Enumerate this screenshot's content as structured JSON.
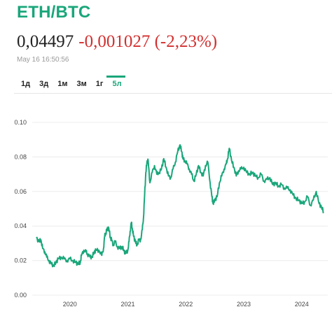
{
  "header": {
    "title": "ETH/BTC",
    "price": "0,04497",
    "change": "-0,001027 (-2,23%)",
    "timestamp": "May 16 16:50:56"
  },
  "tabs": [
    {
      "label": "1д",
      "active": false
    },
    {
      "label": "3д",
      "active": false
    },
    {
      "label": "1м",
      "active": false
    },
    {
      "label": "3м",
      "active": false
    },
    {
      "label": "1г",
      "active": false
    },
    {
      "label": "5л",
      "active": true
    }
  ],
  "colors": {
    "accent": "#1aa67a",
    "negative": "#d32f2f",
    "line": "#1aa67a"
  },
  "chart_data": {
    "type": "line",
    "title": "",
    "xlabel": "",
    "ylabel": "",
    "xlim": [
      2019.35,
      2024.45
    ],
    "ylim": [
      0,
      0.1
    ],
    "y_ticks": [
      "0.00",
      "0.02",
      "0.04",
      "0.06",
      "0.08",
      "0.10"
    ],
    "x_ticks": [
      "2020",
      "2021",
      "2022",
      "2023",
      "2024"
    ],
    "grid": true,
    "legend": "none",
    "series": [
      {
        "name": "",
        "x": [
          2019.42,
          2019.47,
          2019.5,
          2019.53,
          2019.57,
          2019.6,
          2019.64,
          2019.68,
          2019.72,
          2019.76,
          2019.8,
          2019.85,
          2019.9,
          2019.95,
          2020.0,
          2020.05,
          2020.1,
          2020.14,
          2020.18,
          2020.2,
          2020.24,
          2020.28,
          2020.3,
          2020.35,
          2020.38,
          2020.42,
          2020.45,
          2020.5,
          2020.55,
          2020.58,
          2020.6,
          2020.62,
          2020.64,
          2020.67,
          2020.7,
          2020.72,
          2020.75,
          2020.78,
          2020.82,
          2020.86,
          2020.9,
          2020.93,
          2020.96,
          2021.0,
          2021.02,
          2021.04,
          2021.06,
          2021.08,
          2021.1,
          2021.13,
          2021.16,
          2021.19,
          2021.22,
          2021.25,
          2021.27,
          2021.29,
          2021.31,
          2021.33,
          2021.35,
          2021.38,
          2021.42,
          2021.46,
          2021.5,
          2021.54,
          2021.58,
          2021.62,
          2021.66,
          2021.7,
          2021.74,
          2021.78,
          2021.82,
          2021.86,
          2021.9,
          2021.93,
          2021.95,
          2021.98,
          2022.02,
          2022.06,
          2022.1,
          2022.14,
          2022.18,
          2022.22,
          2022.26,
          2022.3,
          2022.34,
          2022.38,
          2022.42,
          2022.45,
          2022.47,
          2022.5,
          2022.54,
          2022.58,
          2022.62,
          2022.66,
          2022.7,
          2022.72,
          2022.75,
          2022.79,
          2022.83,
          2022.87,
          2022.91,
          2022.95,
          2023.0,
          2023.05,
          2023.1,
          2023.15,
          2023.2,
          2023.25,
          2023.3,
          2023.35,
          2023.4,
          2023.45,
          2023.5,
          2023.55,
          2023.6,
          2023.65,
          2023.7,
          2023.75,
          2023.8,
          2023.85,
          2023.9,
          2023.95,
          2024.0,
          2024.05,
          2024.1,
          2024.15,
          2024.2,
          2024.25,
          2024.3,
          2024.34,
          2024.38
        ],
        "y": [
          0.033,
          0.031,
          0.032,
          0.027,
          0.025,
          0.022,
          0.02,
          0.018,
          0.017,
          0.019,
          0.021,
          0.022,
          0.021,
          0.02,
          0.021,
          0.02,
          0.019,
          0.018,
          0.019,
          0.023,
          0.026,
          0.025,
          0.024,
          0.022,
          0.022,
          0.025,
          0.026,
          0.026,
          0.023,
          0.027,
          0.034,
          0.036,
          0.038,
          0.039,
          0.033,
          0.032,
          0.029,
          0.031,
          0.028,
          0.027,
          0.028,
          0.026,
          0.024,
          0.026,
          0.031,
          0.037,
          0.042,
          0.038,
          0.034,
          0.031,
          0.029,
          0.032,
          0.032,
          0.038,
          0.045,
          0.058,
          0.071,
          0.077,
          0.078,
          0.065,
          0.071,
          0.075,
          0.07,
          0.071,
          0.073,
          0.079,
          0.074,
          0.069,
          0.068,
          0.073,
          0.077,
          0.083,
          0.087,
          0.083,
          0.079,
          0.078,
          0.076,
          0.073,
          0.07,
          0.066,
          0.07,
          0.075,
          0.071,
          0.069,
          0.075,
          0.077,
          0.065,
          0.057,
          0.053,
          0.055,
          0.057,
          0.065,
          0.069,
          0.073,
          0.076,
          0.079,
          0.085,
          0.078,
          0.074,
          0.069,
          0.072,
          0.073,
          0.074,
          0.071,
          0.07,
          0.071,
          0.069,
          0.068,
          0.07,
          0.066,
          0.067,
          0.068,
          0.064,
          0.065,
          0.063,
          0.064,
          0.062,
          0.062,
          0.061,
          0.058,
          0.056,
          0.055,
          0.053,
          0.054,
          0.057,
          0.052,
          0.055,
          0.06,
          0.053,
          0.051,
          0.048
        ]
      }
    ]
  }
}
